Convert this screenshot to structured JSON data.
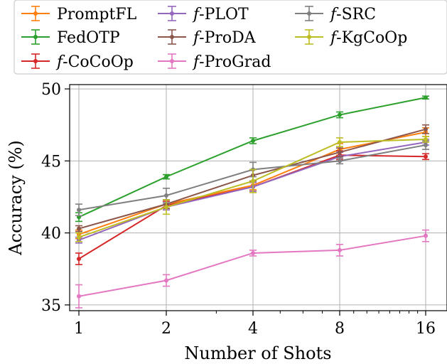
{
  "chart_data": {
    "type": "line",
    "xlabel": "Number of Shots",
    "ylabel": "Accuracy (%)",
    "x": [
      1,
      2,
      4,
      8,
      16
    ],
    "x_ticks": [
      "1",
      "2",
      "4",
      "8",
      "16"
    ],
    "x_scale": "log2",
    "y_ticks": [
      "35",
      "40",
      "45",
      "50"
    ],
    "ylim": [
      34.6,
      50.3
    ],
    "grid": true,
    "legend_position": "top",
    "series": [
      {
        "name": "PromptFL",
        "prefix": "",
        "label": "PromptFL",
        "color": "#ff7f0e",
        "values": [
          39.9,
          42.0,
          43.3,
          45.8,
          47.0
        ],
        "err": [
          0.3,
          0.3,
          0.3,
          0.4,
          0.3
        ]
      },
      {
        "name": "FedOTP",
        "prefix": "",
        "label": "FedOTP",
        "color": "#2ca02c",
        "values": [
          41.1,
          43.9,
          46.4,
          48.2,
          49.4
        ],
        "err": [
          0.3,
          0.15,
          0.2,
          0.2,
          0.1
        ]
      },
      {
        "name": "f-CoCoOp",
        "prefix": "f",
        "label": "-CoCoOp",
        "color": "#d62728",
        "values": [
          38.2,
          41.9,
          43.2,
          45.4,
          45.3
        ],
        "err": [
          0.4,
          0.3,
          0.3,
          0.3,
          0.2
        ]
      },
      {
        "name": "f-PLOT",
        "prefix": "f",
        "label": "-PLOT",
        "color": "#9467bd",
        "values": [
          39.5,
          41.8,
          43.2,
          45.3,
          46.3
        ],
        "err": [
          0.2,
          0.2,
          0.3,
          0.3,
          0.2
        ]
      },
      {
        "name": "f-ProDA",
        "prefix": "f",
        "label": "-ProDA",
        "color": "#8c564b",
        "values": [
          40.3,
          42.0,
          44.0,
          45.6,
          47.2
        ],
        "err": [
          0.2,
          0.3,
          0.4,
          0.3,
          0.3
        ]
      },
      {
        "name": "f-ProGrad",
        "prefix": "f",
        "label": "-ProGrad",
        "color": "#e377c2",
        "values": [
          35.6,
          36.7,
          38.6,
          38.8,
          39.8
        ],
        "err": [
          0.8,
          0.4,
          0.2,
          0.4,
          0.4
        ]
      },
      {
        "name": "f-SRC",
        "prefix": "f",
        "label": "-SRC",
        "color": "#7f7f7f",
        "values": [
          41.6,
          42.6,
          44.4,
          45.0,
          46.1
        ],
        "err": [
          0.4,
          0.5,
          0.5,
          0.2,
          0.3
        ]
      },
      {
        "name": "f-KgCoOp",
        "prefix": "f",
        "label": "-KgCoOp",
        "color": "#bcbd22",
        "values": [
          39.7,
          41.8,
          43.6,
          46.3,
          46.5
        ],
        "err": [
          0.3,
          0.5,
          0.8,
          0.3,
          0.2
        ]
      }
    ]
  }
}
